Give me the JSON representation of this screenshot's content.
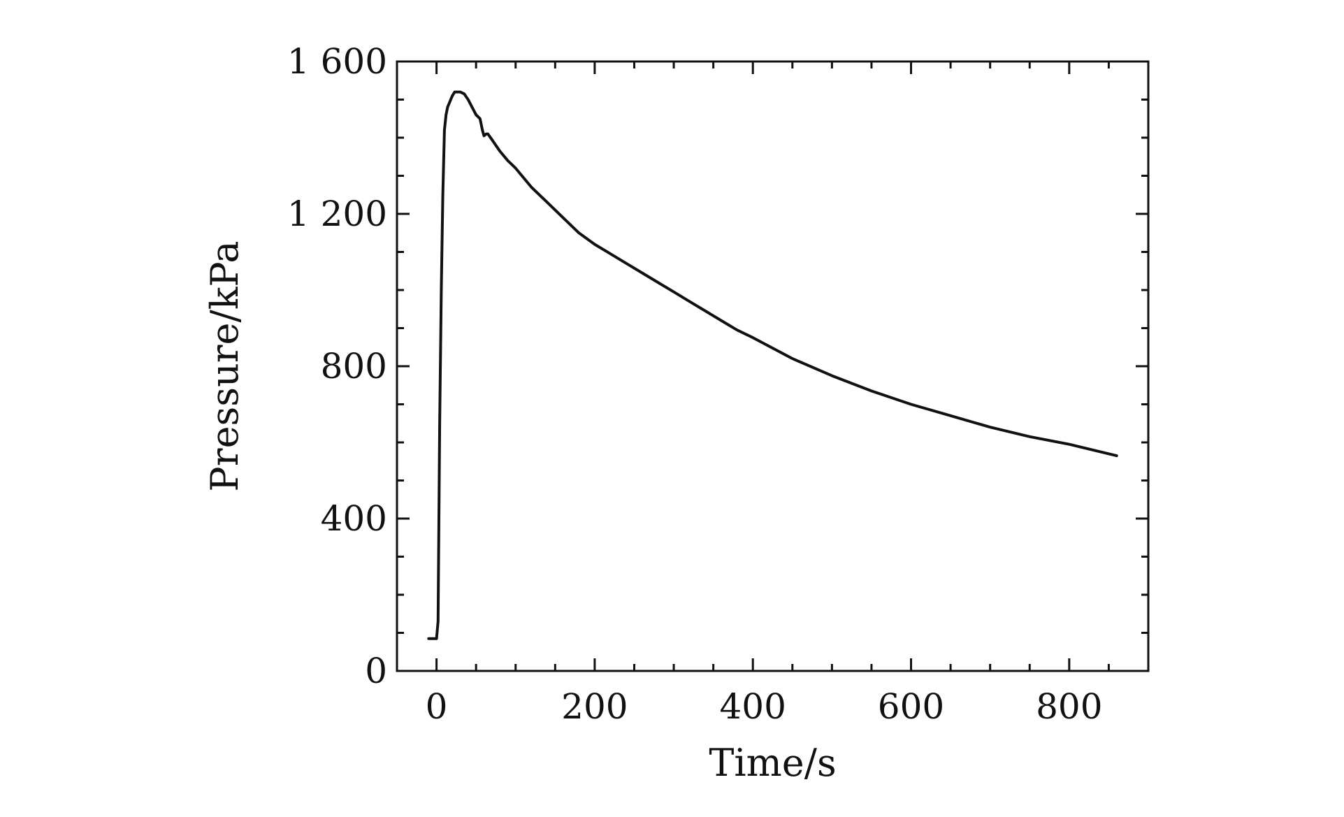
{
  "chart_data": {
    "type": "line",
    "title": "",
    "xlabel": "Time/s",
    "ylabel": "Pressure/kPa",
    "xlim": [
      -50,
      900
    ],
    "ylim": [
      0,
      1600
    ],
    "x_ticks": [
      0,
      200,
      400,
      600,
      800
    ],
    "x_tick_labels": [
      "0",
      "200",
      "400",
      "600",
      "800"
    ],
    "y_ticks": [
      0,
      400,
      800,
      1200,
      1600
    ],
    "y_tick_labels": [
      "0",
      "400",
      "800",
      "1 200",
      "1 600"
    ],
    "x_minor_step": 50,
    "y_minor_step": 100,
    "grid": false,
    "legend": "none",
    "line_color": "#111111",
    "series": [
      {
        "x": [
          -10,
          0,
          2,
          4,
          6,
          8,
          10,
          12,
          14,
          16,
          18,
          20,
          23,
          26,
          30,
          35,
          40,
          45,
          50,
          55,
          58,
          60,
          63,
          65,
          70,
          80,
          90,
          100,
          120,
          140,
          160,
          180,
          200,
          220,
          240,
          260,
          280,
          300,
          320,
          340,
          360,
          380,
          400,
          450,
          500,
          550,
          600,
          650,
          700,
          750,
          800,
          860
        ],
        "y": [
          85,
          85,
          130,
          650,
          1000,
          1250,
          1420,
          1460,
          1480,
          1490,
          1500,
          1510,
          1520,
          1520,
          1520,
          1515,
          1500,
          1480,
          1460,
          1450,
          1420,
          1405,
          1410,
          1410,
          1395,
          1365,
          1340,
          1320,
          1270,
          1230,
          1190,
          1150,
          1120,
          1095,
          1070,
          1045,
          1020,
          995,
          970,
          945,
          920,
          895,
          875,
          820,
          775,
          735,
          700,
          670,
          640,
          615,
          595,
          565
        ]
      }
    ]
  }
}
